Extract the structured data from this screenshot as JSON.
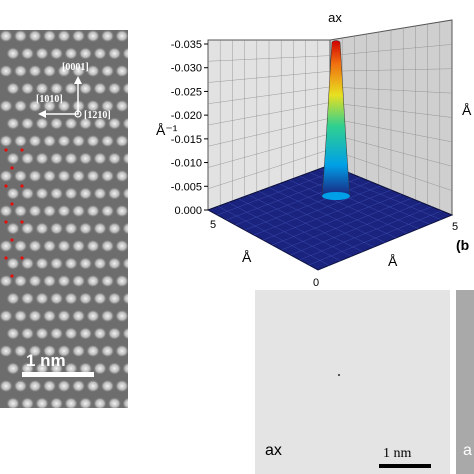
{
  "left_panel": {
    "directions": {
      "up": "[0001]",
      "left": "[1010]",
      "center": "[1210]"
    },
    "scale_bar": "1 nm"
  },
  "plot": {
    "title": "ax",
    "zlabel_left": "Å⁻¹",
    "zlabel_right": "Å",
    "axis_front_left": "Å",
    "axis_front_right": "Å",
    "panel_letter": "(b",
    "floor_ticks": {
      "left_max": "5",
      "origin": "0",
      "right_max": "5"
    },
    "z_ticks": [
      "-0.035",
      "-0.030",
      "-0.025",
      "-0.020",
      "-0.015",
      "-0.010",
      "-0.005",
      "0.000"
    ]
  },
  "bottom_panel": {
    "label": "ax",
    "scale_bar": "1 nm",
    "right_label": "a"
  },
  "colors": {
    "surface_top": "#d00000",
    "surface_mid": "#00b0e0",
    "floor": "#1a237e"
  }
}
